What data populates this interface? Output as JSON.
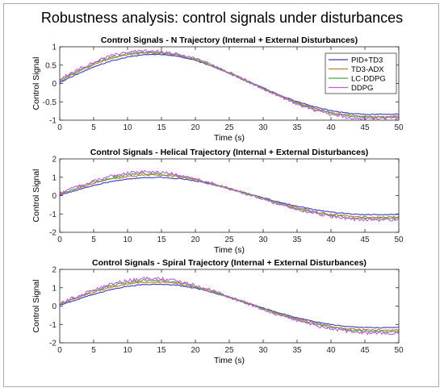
{
  "figure": {
    "title": "Robustness analysis: control signals under disturbances"
  },
  "colors": {
    "PID+TD3": "#3b3bc4",
    "TD3-ADX": "#c07a2a",
    "LC-DDPG": "#47a447",
    "DDPG": "#c65ad8",
    "axis": "#262626",
    "frame": "#a9a9a9"
  },
  "legend": {
    "placement": "top-right of first panel",
    "entries": [
      "PID+TD3",
      "TD3-ADX",
      "LC-DDPG",
      "DDPG"
    ]
  },
  "chart_data": [
    {
      "type": "line",
      "title": "Control Signals - N Trajectory (Internal + External Disturbances)",
      "xlabel": "Time (s)",
      "ylabel": "Control Signal",
      "xlim": [
        0,
        50
      ],
      "ylim": [
        -1,
        1
      ],
      "xticks": [
        0,
        5,
        10,
        15,
        20,
        25,
        30,
        35,
        40,
        45,
        50
      ],
      "yticks": [
        -1,
        -0.5,
        0,
        0.5,
        1
      ],
      "ytick_labels": [
        "-1",
        "-0.5",
        "0",
        "0.5",
        "1"
      ],
      "grid": false,
      "legend": true,
      "x": [
        0,
        2.5,
        5,
        7.5,
        10,
        12.5,
        15,
        17.5,
        20,
        22.5,
        25,
        27.5,
        30,
        32.5,
        35,
        37.5,
        40,
        42.5,
        45,
        47.5,
        50
      ],
      "series": [
        {
          "name": "PID+TD3",
          "values": [
            0.03,
            0.25,
            0.45,
            0.61,
            0.72,
            0.78,
            0.79,
            0.74,
            0.63,
            0.47,
            0.28,
            0.08,
            -0.12,
            -0.32,
            -0.49,
            -0.63,
            -0.74,
            -0.81,
            -0.84,
            -0.84,
            -0.83
          ]
        },
        {
          "name": "TD3-ADX",
          "values": [
            0.06,
            0.3,
            0.52,
            0.68,
            0.78,
            0.83,
            0.83,
            0.77,
            0.65,
            0.49,
            0.29,
            0.08,
            -0.13,
            -0.34,
            -0.52,
            -0.67,
            -0.79,
            -0.86,
            -0.9,
            -0.9,
            -0.89
          ]
        },
        {
          "name": "LC-DDPG",
          "values": [
            0.08,
            0.33,
            0.55,
            0.71,
            0.81,
            0.85,
            0.84,
            0.78,
            0.66,
            0.49,
            0.29,
            0.08,
            -0.13,
            -0.35,
            -0.54,
            -0.69,
            -0.81,
            -0.88,
            -0.92,
            -0.92,
            -0.91
          ]
        },
        {
          "name": "DDPG",
          "values": [
            0.1,
            0.36,
            0.58,
            0.75,
            0.85,
            0.89,
            0.87,
            0.8,
            0.67,
            0.5,
            0.3,
            0.08,
            -0.14,
            -0.36,
            -0.56,
            -0.72,
            -0.84,
            -0.92,
            -0.96,
            -0.96,
            -0.95
          ]
        }
      ]
    },
    {
      "type": "line",
      "title": "Control Signals - Helical Trajectory (Internal + External Disturbances)",
      "xlabel": "Time (s)",
      "ylabel": "Control Signal",
      "xlim": [
        0,
        50
      ],
      "ylim": [
        -2,
        2
      ],
      "xticks": [
        0,
        5,
        10,
        15,
        20,
        25,
        30,
        35,
        40,
        45,
        50
      ],
      "yticks": [
        -2,
        -1,
        0,
        1,
        2
      ],
      "ytick_labels": [
        "-2",
        "-1",
        "0",
        "1",
        "2"
      ],
      "grid": false,
      "legend": false,
      "x": [
        0,
        2.5,
        5,
        7.5,
        10,
        12.5,
        15,
        17.5,
        20,
        22.5,
        25,
        27.5,
        30,
        32.5,
        35,
        37.5,
        40,
        42.5,
        45,
        47.5,
        50
      ],
      "series": [
        {
          "name": "PID+TD3",
          "values": [
            0.02,
            0.3,
            0.55,
            0.76,
            0.9,
            0.98,
            0.99,
            0.93,
            0.8,
            0.61,
            0.38,
            0.13,
            -0.12,
            -0.37,
            -0.58,
            -0.76,
            -0.9,
            -0.99,
            -1.04,
            -1.04,
            -1.02
          ]
        },
        {
          "name": "TD3-ADX",
          "values": [
            0.06,
            0.38,
            0.67,
            0.9,
            1.05,
            1.13,
            1.12,
            1.03,
            0.86,
            0.64,
            0.38,
            0.12,
            -0.15,
            -0.42,
            -0.66,
            -0.86,
            -1.02,
            -1.12,
            -1.17,
            -1.18,
            -1.15
          ]
        },
        {
          "name": "LC-DDPG",
          "values": [
            0.09,
            0.43,
            0.73,
            0.97,
            1.13,
            1.2,
            1.18,
            1.08,
            0.89,
            0.65,
            0.38,
            0.11,
            -0.17,
            -0.45,
            -0.7,
            -0.91,
            -1.08,
            -1.19,
            -1.24,
            -1.25,
            -1.22
          ]
        },
        {
          "name": "DDPG",
          "values": [
            0.12,
            0.48,
            0.8,
            1.05,
            1.22,
            1.29,
            1.26,
            1.14,
            0.93,
            0.67,
            0.39,
            0.1,
            -0.19,
            -0.48,
            -0.74,
            -0.96,
            -1.14,
            -1.26,
            -1.32,
            -1.33,
            -1.3
          ]
        }
      ]
    },
    {
      "type": "line",
      "title": "Control Signals - Spiral Trajectory (Internal + External Disturbances)",
      "xlabel": "Time (s)",
      "ylabel": "Control Signal",
      "xlim": [
        0,
        50
      ],
      "ylim": [
        -2,
        2
      ],
      "xticks": [
        0,
        5,
        10,
        15,
        20,
        25,
        30,
        35,
        40,
        45,
        50
      ],
      "yticks": [
        -2,
        -1,
        0,
        1,
        2
      ],
      "ytick_labels": [
        "-2",
        "-1",
        "0",
        "1",
        "2"
      ],
      "grid": false,
      "legend": false,
      "x": [
        0,
        2.5,
        5,
        7.5,
        10,
        12.5,
        15,
        17.5,
        20,
        22.5,
        25,
        27.5,
        30,
        32.5,
        35,
        37.5,
        40,
        42.5,
        45,
        47.5,
        50
      ],
      "series": [
        {
          "name": "PID+TD3",
          "values": [
            0.05,
            0.35,
            0.65,
            0.9,
            1.08,
            1.18,
            1.2,
            1.13,
            0.97,
            0.75,
            0.48,
            0.19,
            -0.1,
            -0.38,
            -0.63,
            -0.84,
            -1.0,
            -1.11,
            -1.17,
            -1.18,
            -1.16
          ]
        },
        {
          "name": "TD3-ADX",
          "values": [
            0.09,
            0.43,
            0.76,
            1.03,
            1.22,
            1.32,
            1.32,
            1.22,
            1.03,
            0.78,
            0.49,
            0.18,
            -0.13,
            -0.43,
            -0.7,
            -0.93,
            -1.11,
            -1.23,
            -1.3,
            -1.31,
            -1.29
          ]
        },
        {
          "name": "LC-DDPG",
          "values": [
            0.12,
            0.48,
            0.82,
            1.11,
            1.3,
            1.4,
            1.39,
            1.28,
            1.07,
            0.8,
            0.5,
            0.18,
            -0.15,
            -0.46,
            -0.74,
            -0.98,
            -1.17,
            -1.3,
            -1.37,
            -1.39,
            -1.36
          ]
        },
        {
          "name": "DDPG",
          "values": [
            0.15,
            0.53,
            0.89,
            1.19,
            1.39,
            1.5,
            1.48,
            1.35,
            1.12,
            0.83,
            0.51,
            0.17,
            -0.17,
            -0.5,
            -0.79,
            -1.04,
            -1.24,
            -1.38,
            -1.46,
            -1.48,
            -1.45
          ]
        }
      ]
    }
  ]
}
